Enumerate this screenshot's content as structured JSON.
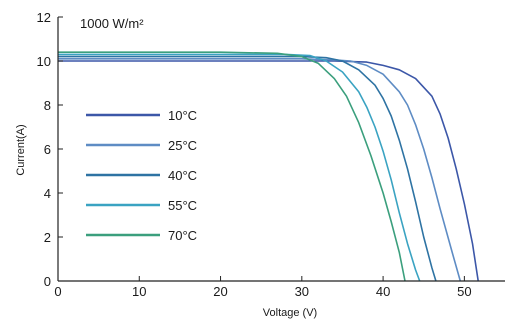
{
  "chart_data": {
    "type": "line",
    "title": "",
    "annotation": "1000 W/m²",
    "xlabel": "Voltage (V)",
    "ylabel": "Current(A)",
    "xlim": [
      0,
      55
    ],
    "ylim": [
      0,
      12
    ],
    "x_ticks": [
      0,
      10,
      20,
      30,
      40,
      50
    ],
    "y_ticks": [
      0,
      2,
      4,
      6,
      8,
      10,
      12
    ],
    "grid": false,
    "legend_position": "left",
    "series": [
      {
        "name": "10°C",
        "color": "#3c57a8",
        "points": [
          [
            0,
            10.0
          ],
          [
            10,
            10.0
          ],
          [
            20,
            10.0
          ],
          [
            30,
            10.0
          ],
          [
            34,
            10.0
          ],
          [
            38,
            9.95
          ],
          [
            40,
            9.8
          ],
          [
            42,
            9.6
          ],
          [
            44,
            9.2
          ],
          [
            46,
            8.4
          ],
          [
            47,
            7.6
          ],
          [
            48,
            6.5
          ],
          [
            49,
            5.1
          ],
          [
            50,
            3.5
          ],
          [
            51,
            1.7
          ],
          [
            51.7,
            0
          ]
        ]
      },
      {
        "name": "25°C",
        "color": "#5e8cc4",
        "points": [
          [
            0,
            10.1
          ],
          [
            10,
            10.1
          ],
          [
            20,
            10.1
          ],
          [
            30,
            10.1
          ],
          [
            34,
            10.05
          ],
          [
            36,
            10.0
          ],
          [
            38,
            9.8
          ],
          [
            40,
            9.4
          ],
          [
            42,
            8.6
          ],
          [
            43,
            8.0
          ],
          [
            44,
            7.1
          ],
          [
            45,
            6.0
          ],
          [
            46,
            4.7
          ],
          [
            47,
            3.3
          ],
          [
            48.5,
            1.3
          ],
          [
            49.5,
            0
          ]
        ]
      },
      {
        "name": "40°C",
        "color": "#2e73a3",
        "points": [
          [
            0,
            10.2
          ],
          [
            10,
            10.2
          ],
          [
            20,
            10.2
          ],
          [
            30,
            10.2
          ],
          [
            33,
            10.15
          ],
          [
            35,
            10.0
          ],
          [
            37,
            9.6
          ],
          [
            39,
            8.9
          ],
          [
            40,
            8.3
          ],
          [
            41,
            7.5
          ],
          [
            42,
            6.4
          ],
          [
            43,
            5.1
          ],
          [
            44,
            3.6
          ],
          [
            45,
            2.0
          ],
          [
            46,
            0.6
          ],
          [
            46.5,
            0
          ]
        ]
      },
      {
        "name": "55°C",
        "color": "#3aa3c2",
        "points": [
          [
            0,
            10.3
          ],
          [
            10,
            10.3
          ],
          [
            20,
            10.3
          ],
          [
            28,
            10.3
          ],
          [
            31,
            10.25
          ],
          [
            33,
            10.0
          ],
          [
            35,
            9.5
          ],
          [
            37,
            8.6
          ],
          [
            38,
            7.9
          ],
          [
            39,
            7.0
          ],
          [
            40,
            5.9
          ],
          [
            41,
            4.6
          ],
          [
            42,
            3.1
          ],
          [
            43,
            1.7
          ],
          [
            44,
            0.5
          ],
          [
            44.5,
            0
          ]
        ]
      },
      {
        "name": "70°C",
        "color": "#3b9f7d",
        "points": [
          [
            0,
            10.4
          ],
          [
            10,
            10.4
          ],
          [
            20,
            10.4
          ],
          [
            27,
            10.35
          ],
          [
            30,
            10.2
          ],
          [
            32,
            9.9
          ],
          [
            34,
            9.2
          ],
          [
            35.5,
            8.4
          ],
          [
            37,
            7.2
          ],
          [
            38.5,
            5.7
          ],
          [
            40,
            4.0
          ],
          [
            41,
            2.7
          ],
          [
            42,
            1.3
          ],
          [
            42.7,
            0
          ]
        ]
      }
    ]
  }
}
